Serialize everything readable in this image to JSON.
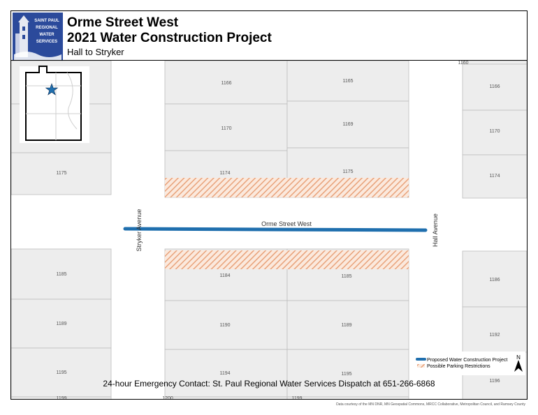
{
  "header": {
    "logo_text": [
      "SAINT PAUL",
      "REGIONAL",
      "WATER",
      "SERVICES"
    ],
    "title_line1": "Orme Street West",
    "title_line2": "2021 Water Construction Project",
    "subtitle": "Hall to Stryker"
  },
  "map": {
    "street_main": "Orme Street West",
    "street_left": "Stryker Avenue",
    "street_right": "Hall Avenue",
    "parcel_numbers": {
      "top_left_block": [
        "1175"
      ],
      "top_mid_left": [
        "1166",
        "1170",
        "1174"
      ],
      "top_mid_right": [
        "1165",
        "1169",
        "1175"
      ],
      "top_right": [
        "1160",
        "1166",
        "1170",
        "1174"
      ],
      "bottom_left": [
        "1185",
        "1189",
        "1195",
        "1199"
      ],
      "bottom_mid_left": [
        "1184",
        "1190",
        "1194",
        "1200"
      ],
      "bottom_mid_right": [
        "1185",
        "1189",
        "1195",
        "1199"
      ],
      "bottom_right": [
        "1186",
        "1192",
        "1196"
      ]
    }
  },
  "legend": {
    "items": [
      {
        "label": "Proposed Water Construction Project",
        "color": "#1f6fae"
      },
      {
        "label": "Possible Parking Restrictions",
        "color": "#e8a27a"
      }
    ],
    "north_label": "N"
  },
  "emergency": "24-hour Emergency Contact: St. Paul Regional Water Services Dispatch at 651-266-6868",
  "credit": "Data courtesy of the MN DNR, MN Geospatial Commons, MRCC Collaborative, Metropolitan Council, and Ramsey County",
  "colors": {
    "construction_line": "#1f6fae",
    "parking_hatch": "#e8a27a",
    "parcel_fill": "#ededed",
    "parcel_stroke": "#bdbdbd",
    "logo_blue": "#2b4a9b"
  }
}
